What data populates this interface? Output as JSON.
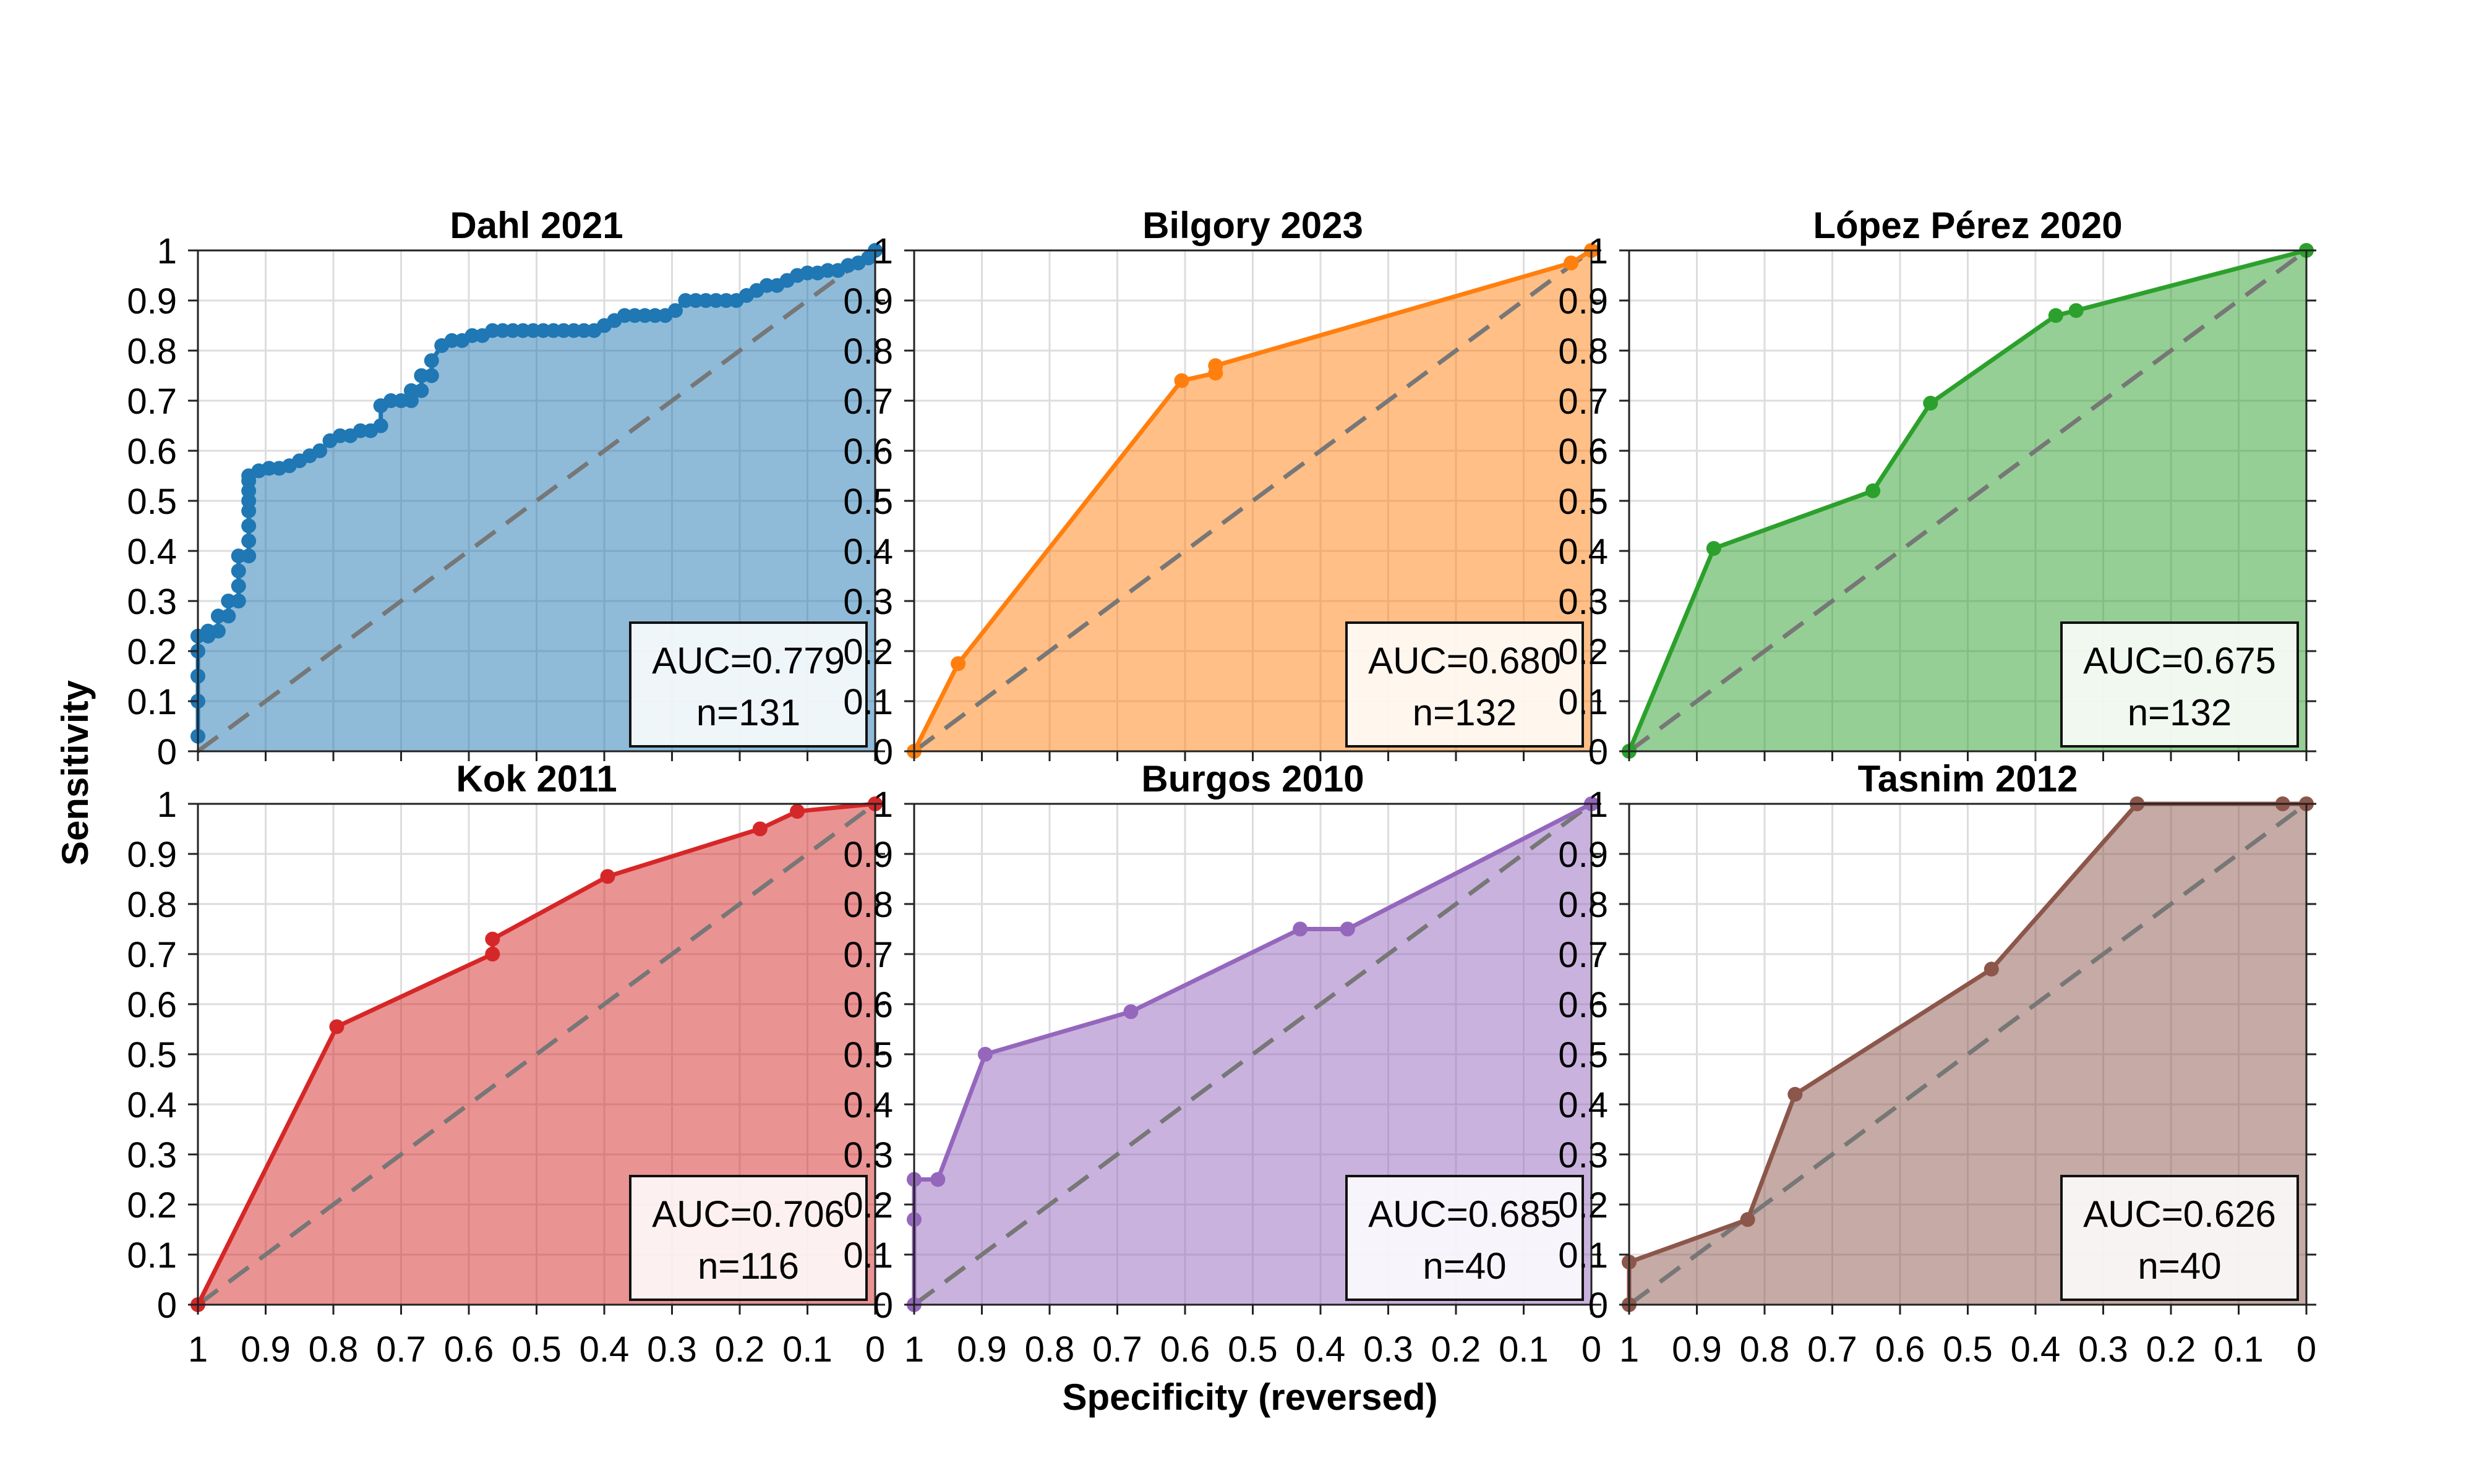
{
  "figure": {
    "xlabel": "Specificity (reversed)",
    "ylabel": "Sensitivity"
  },
  "chart_data": [
    {
      "type": "area",
      "title": "Dahl 2021",
      "color": "#1f77b4",
      "auc_label": "AUC=0.779",
      "n_label": "n=131",
      "xlim": [
        1,
        0
      ],
      "ylim": [
        0,
        1
      ],
      "x_ticks": [
        "1",
        "0.9",
        "0.8",
        "0.7",
        "0.6",
        "0.5",
        "0.4",
        "0.3",
        "0.2",
        "0.1",
        "0"
      ],
      "y_ticks": [
        "0",
        "0.1",
        "0.2",
        "0.3",
        "0.4",
        "0.5",
        "0.6",
        "0.7",
        "0.8",
        "0.9",
        "1"
      ],
      "specificity": [
        1,
        1,
        1,
        1,
        1,
        0.985,
        0.985,
        0.97,
        0.97,
        0.955,
        0.955,
        0.94,
        0.94,
        0.94,
        0.94,
        0.925,
        0.925,
        0.925,
        0.925,
        0.925,
        0.925,
        0.925,
        0.925,
        0.91,
        0.895,
        0.88,
        0.865,
        0.85,
        0.835,
        0.82,
        0.805,
        0.79,
        0.775,
        0.76,
        0.745,
        0.73,
        0.73,
        0.715,
        0.7,
        0.685,
        0.685,
        0.67,
        0.67,
        0.655,
        0.655,
        0.64,
        0.625,
        0.61,
        0.595,
        0.58,
        0.565,
        0.55,
        0.535,
        0.52,
        0.505,
        0.49,
        0.475,
        0.46,
        0.445,
        0.43,
        0.415,
        0.4,
        0.385,
        0.37,
        0.355,
        0.34,
        0.325,
        0.31,
        0.295,
        0.28,
        0.265,
        0.25,
        0.235,
        0.22,
        0.205,
        0.19,
        0.175,
        0.16,
        0.145,
        0.13,
        0.115,
        0.1,
        0.085,
        0.07,
        0.055,
        0.04,
        0.025,
        0.01,
        0
      ],
      "sensitivity": [
        0.03,
        0.1,
        0.15,
        0.2,
        0.23,
        0.23,
        0.24,
        0.24,
        0.27,
        0.27,
        0.3,
        0.3,
        0.33,
        0.36,
        0.39,
        0.39,
        0.42,
        0.45,
        0.48,
        0.5,
        0.52,
        0.54,
        0.55,
        0.56,
        0.565,
        0.565,
        0.57,
        0.58,
        0.59,
        0.6,
        0.62,
        0.63,
        0.63,
        0.64,
        0.64,
        0.65,
        0.69,
        0.7,
        0.7,
        0.7,
        0.72,
        0.72,
        0.75,
        0.75,
        0.78,
        0.81,
        0.82,
        0.82,
        0.83,
        0.83,
        0.84,
        0.84,
        0.84,
        0.84,
        0.84,
        0.84,
        0.84,
        0.84,
        0.84,
        0.84,
        0.84,
        0.85,
        0.86,
        0.87,
        0.87,
        0.87,
        0.87,
        0.87,
        0.88,
        0.9,
        0.9,
        0.9,
        0.9,
        0.9,
        0.9,
        0.91,
        0.92,
        0.93,
        0.93,
        0.94,
        0.95,
        0.955,
        0.955,
        0.96,
        0.96,
        0.97,
        0.975,
        0.985,
        1
      ]
    },
    {
      "type": "area",
      "title": "Bilgory 2023",
      "color": "#ff7f0e",
      "auc_label": "AUC=0.680",
      "n_label": "n=132",
      "xlim": [
        1,
        0
      ],
      "ylim": [
        0,
        1
      ],
      "x_ticks": [
        "1",
        "0.9",
        "0.8",
        "0.7",
        "0.6",
        "0.5",
        "0.4",
        "0.3",
        "0.2",
        "0.1",
        "0"
      ],
      "y_ticks": [
        "0",
        "0.1",
        "0.2",
        "0.3",
        "0.4",
        "0.5",
        "0.6",
        "0.7",
        "0.8",
        "0.9",
        "1"
      ],
      "specificity": [
        1,
        0.935,
        0.605,
        0.555,
        0.555,
        0.03,
        0
      ],
      "sensitivity": [
        0,
        0.175,
        0.74,
        0.755,
        0.77,
        0.975,
        1
      ]
    },
    {
      "type": "area",
      "title": "López Pérez 2020",
      "color": "#2ca02c",
      "auc_label": "AUC=0.675",
      "n_label": "n=132",
      "xlim": [
        1,
        0
      ],
      "ylim": [
        0,
        1
      ],
      "x_ticks": [
        "1",
        "0.9",
        "0.8",
        "0.7",
        "0.6",
        "0.5",
        "0.4",
        "0.3",
        "0.2",
        "0.1",
        "0"
      ],
      "y_ticks": [
        "0",
        "0.1",
        "0.2",
        "0.3",
        "0.4",
        "0.5",
        "0.6",
        "0.7",
        "0.8",
        "0.9",
        "1"
      ],
      "specificity": [
        1,
        0.875,
        0.64,
        0.555,
        0.37,
        0.34,
        0
      ],
      "sensitivity": [
        0,
        0.405,
        0.52,
        0.695,
        0.87,
        0.88,
        1
      ]
    },
    {
      "type": "area",
      "title": "Kok 2011",
      "color": "#d62728",
      "auc_label": "AUC=0.706",
      "n_label": "n=116",
      "xlim": [
        1,
        0
      ],
      "ylim": [
        0,
        1
      ],
      "x_ticks": [
        "1",
        "0.9",
        "0.8",
        "0.7",
        "0.6",
        "0.5",
        "0.4",
        "0.3",
        "0.2",
        "0.1",
        "0"
      ],
      "y_ticks": [
        "0",
        "0.1",
        "0.2",
        "0.3",
        "0.4",
        "0.5",
        "0.6",
        "0.7",
        "0.8",
        "0.9",
        "1"
      ],
      "specificity": [
        1,
        0.795,
        0.565,
        0.565,
        0.395,
        0.17,
        0.115,
        0
      ],
      "sensitivity": [
        0,
        0.555,
        0.7,
        0.73,
        0.855,
        0.95,
        0.985,
        1
      ]
    },
    {
      "type": "area",
      "title": "Burgos 2010",
      "color": "#9467bd",
      "auc_label": "AUC=0.685",
      "n_label": "n=40",
      "xlim": [
        1,
        0
      ],
      "ylim": [
        0,
        1
      ],
      "x_ticks": [
        "1",
        "0.9",
        "0.8",
        "0.7",
        "0.6",
        "0.5",
        "0.4",
        "0.3",
        "0.2",
        "0.1",
        "0"
      ],
      "y_ticks": [
        "0",
        "0.1",
        "0.2",
        "0.3",
        "0.4",
        "0.5",
        "0.6",
        "0.7",
        "0.8",
        "0.9",
        "1"
      ],
      "specificity": [
        1,
        1,
        1,
        0.965,
        0.895,
        0.68,
        0.43,
        0.36,
        0
      ],
      "sensitivity": [
        0,
        0.17,
        0.25,
        0.25,
        0.5,
        0.585,
        0.75,
        0.75,
        1
      ]
    },
    {
      "type": "area",
      "title": "Tasnim 2012",
      "color": "#8c564b",
      "auc_label": "AUC=0.626",
      "n_label": "n=40",
      "xlim": [
        1,
        0
      ],
      "ylim": [
        0,
        1
      ],
      "x_ticks": [
        "1",
        "0.9",
        "0.8",
        "0.7",
        "0.6",
        "0.5",
        "0.4",
        "0.3",
        "0.2",
        "0.1",
        "0"
      ],
      "y_ticks": [
        "0",
        "0.1",
        "0.2",
        "0.3",
        "0.4",
        "0.5",
        "0.6",
        "0.7",
        "0.8",
        "0.9",
        "1"
      ],
      "specificity": [
        1,
        1,
        0.825,
        0.755,
        0.465,
        0.25,
        0.035,
        0
      ],
      "sensitivity": [
        0,
        0.085,
        0.17,
        0.42,
        0.67,
        1,
        1,
        1
      ]
    }
  ]
}
